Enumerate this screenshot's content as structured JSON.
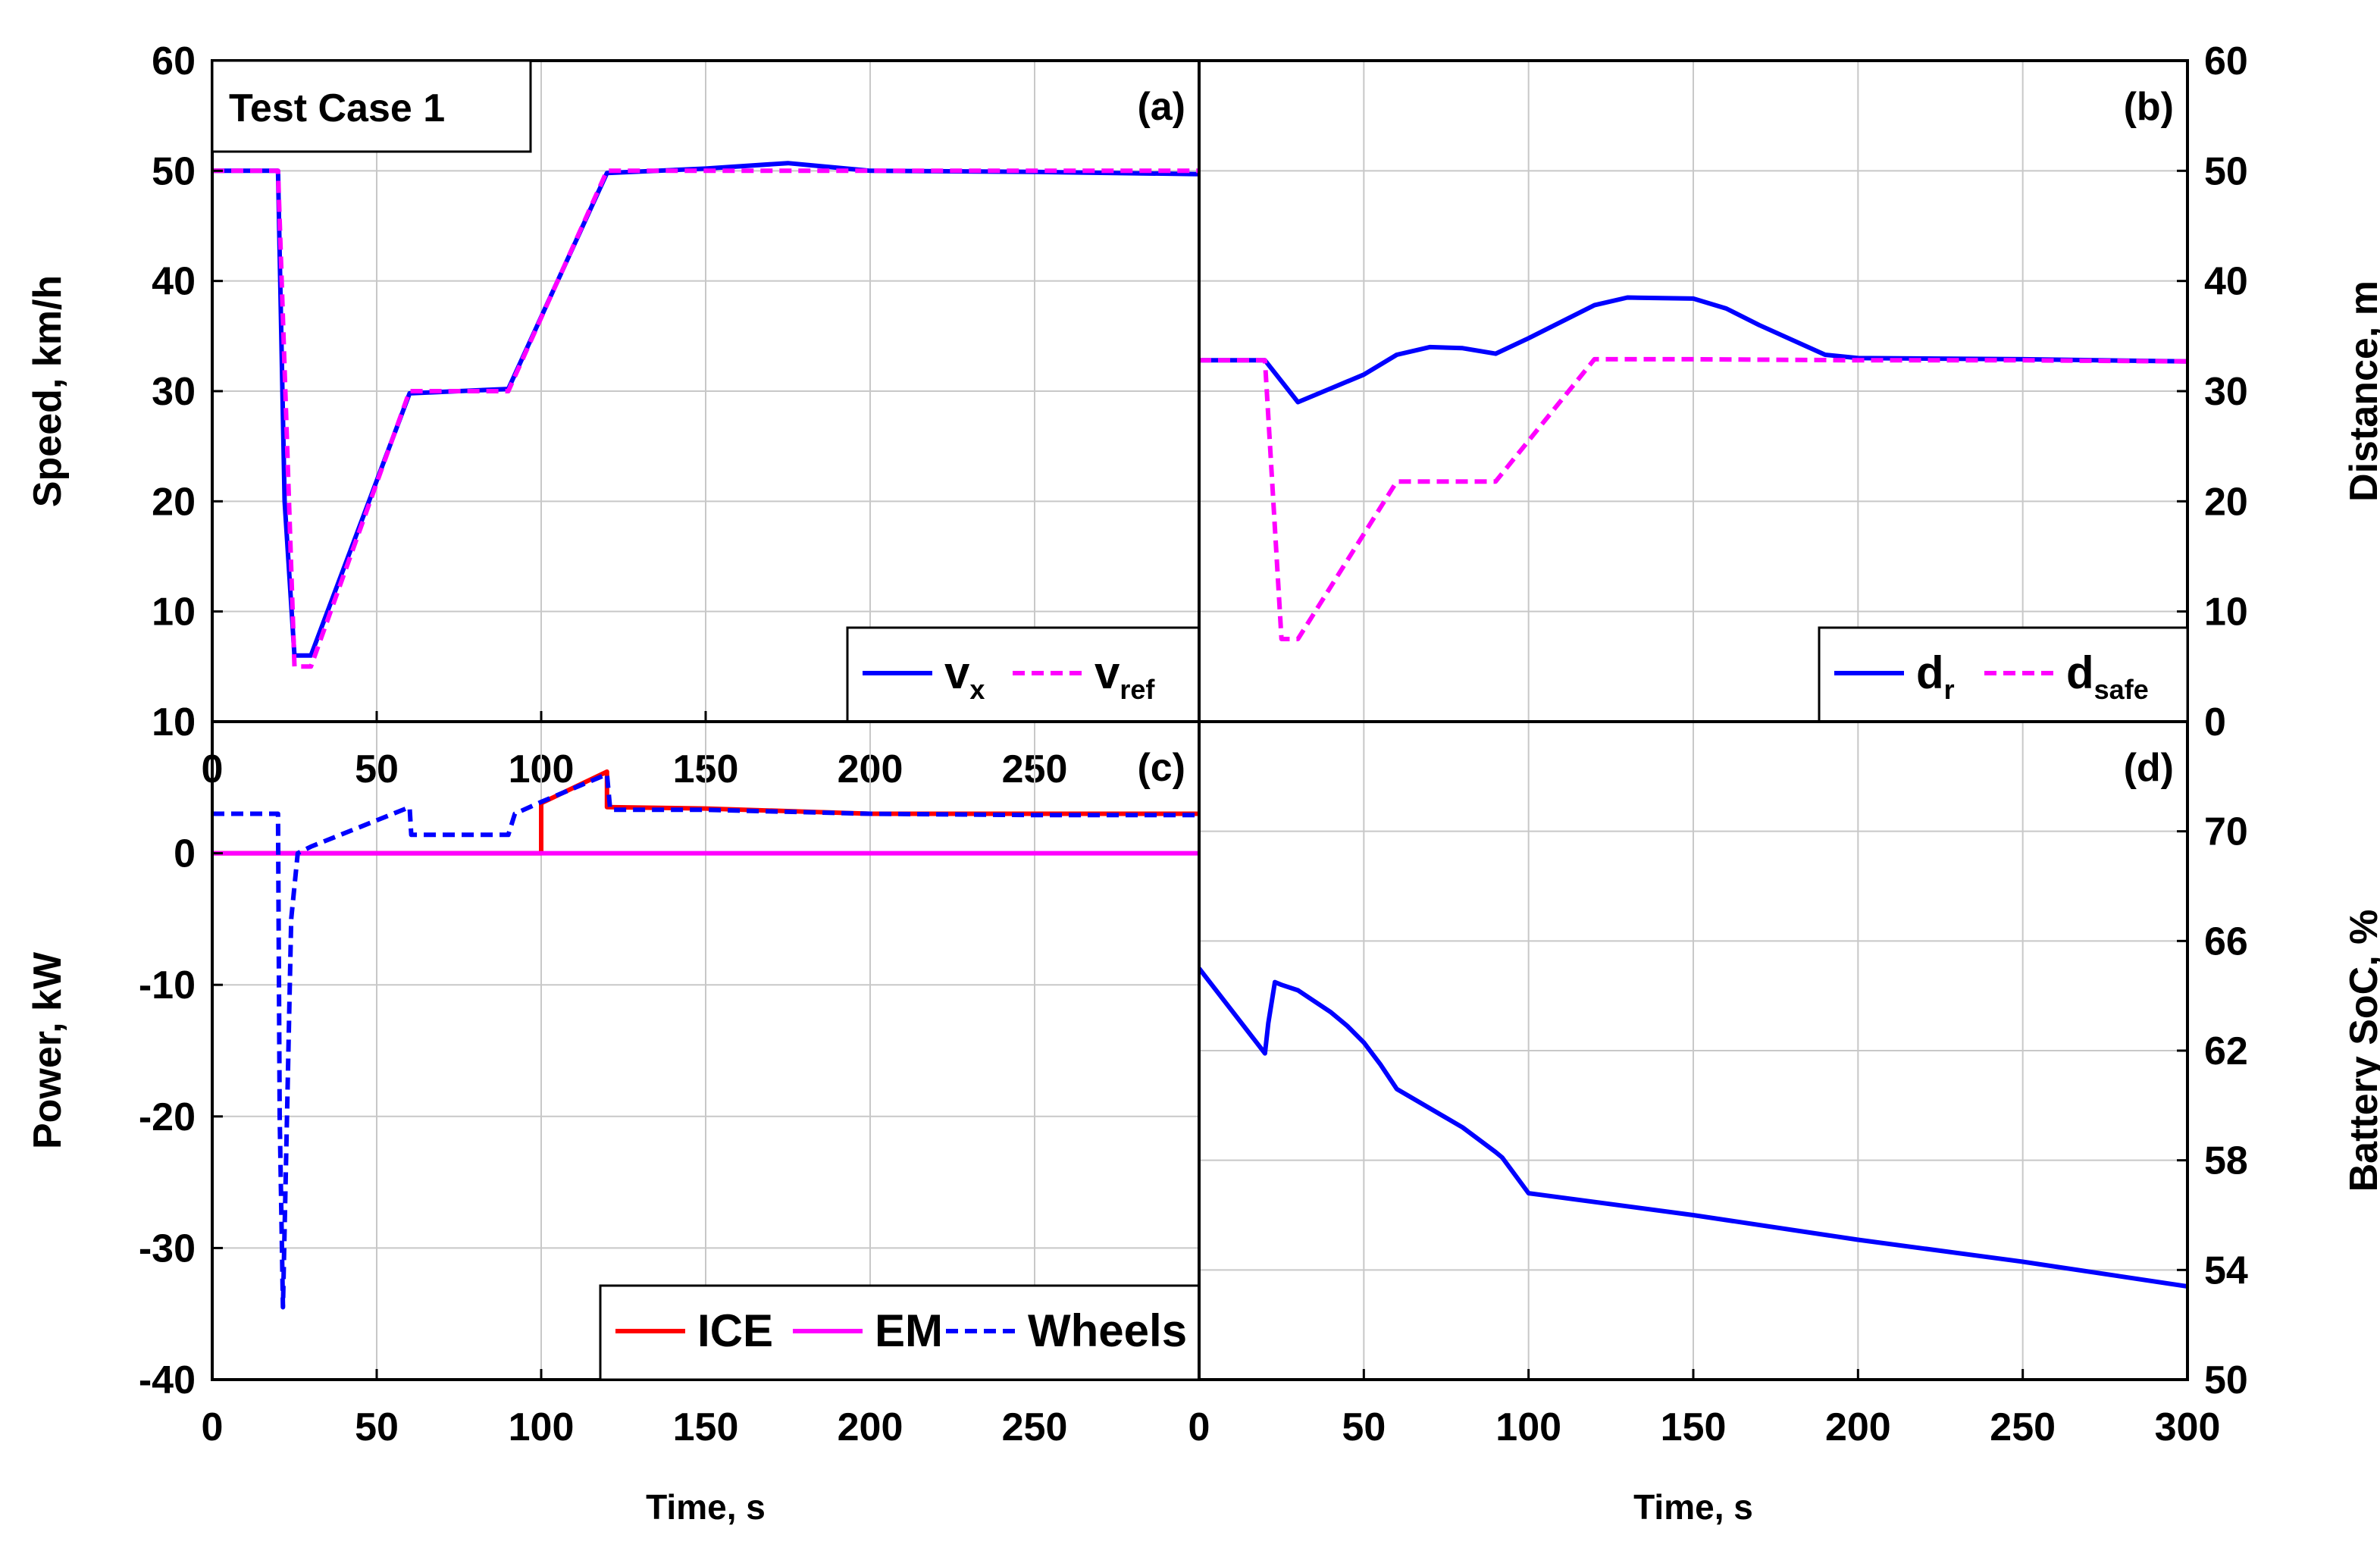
{
  "chart_data": [
    {
      "panel": "(a)",
      "type": "line",
      "annotation": "Test Case 1",
      "xlabel": "",
      "ylabel": "Speed, km/h",
      "xlim": [
        0,
        300
      ],
      "ylim": [
        0,
        60
      ],
      "yticks": [
        0,
        10,
        20,
        30,
        40,
        50,
        60
      ],
      "xtick_labels": [
        "0",
        "50",
        "100",
        "150",
        "200",
        "250"
      ],
      "grid": true,
      "legend": "bottom-right",
      "series": [
        {
          "name": "v",
          "subscript": "x",
          "color": "#0000ff",
          "dash": "solid",
          "x": [
            0,
            20,
            22,
            25,
            30,
            60,
            90,
            120,
            150,
            175,
            200,
            250,
            300
          ],
          "y": [
            50,
            50,
            20,
            6,
            6,
            29.8,
            30.2,
            49.8,
            50.2,
            50.7,
            50,
            49.9,
            49.7
          ]
        },
        {
          "name": "v",
          "subscript": "ref",
          "color": "#ff00ff",
          "dash": "dashed",
          "x": [
            0,
            20,
            25,
            30,
            60,
            90,
            120,
            150,
            200,
            250,
            300
          ],
          "y": [
            50,
            50,
            5,
            5,
            30,
            30,
            50,
            50,
            50,
            50,
            50
          ]
        }
      ]
    },
    {
      "panel": "(b)",
      "type": "line",
      "xlabel": "",
      "ylabel": "Distance, m",
      "xlim": [
        0,
        300
      ],
      "ylim": [
        0,
        60
      ],
      "yticks": [
        0,
        10,
        20,
        30,
        40,
        50,
        60
      ],
      "grid": true,
      "legend": "bottom-right",
      "series": [
        {
          "name": "d",
          "subscript": "r",
          "color": "#0000ff",
          "dash": "solid",
          "x": [
            0,
            20,
            30,
            50,
            60,
            70,
            80,
            90,
            100,
            120,
            130,
            150,
            160,
            170,
            190,
            200,
            250,
            300
          ],
          "y": [
            32.8,
            32.8,
            29,
            31.5,
            33.3,
            34,
            33.9,
            33.4,
            34.8,
            37.8,
            38.5,
            38.4,
            37.5,
            36,
            33.3,
            33,
            32.9,
            32.7
          ]
        },
        {
          "name": "d",
          "subscript": "safe",
          "color": "#ff00ff",
          "dash": "dashed",
          "x": [
            0,
            20,
            25,
            30,
            60,
            90,
            120,
            150,
            200,
            250,
            300
          ],
          "y": [
            32.8,
            32.8,
            7.5,
            7.5,
            21.8,
            21.8,
            32.9,
            32.9,
            32.8,
            32.8,
            32.7
          ]
        }
      ]
    },
    {
      "panel": "(c)",
      "type": "line",
      "xlabel": "Time, s",
      "ylabel": "Power, kW",
      "xlim": [
        0,
        300
      ],
      "ylim": [
        -40,
        10
      ],
      "yticks": [
        -40,
        -30,
        -20,
        -10,
        0,
        10
      ],
      "xtick_labels": [
        "0",
        "50",
        "100",
        "150",
        "200",
        "250"
      ],
      "grid": true,
      "legend": "bottom-right",
      "series": [
        {
          "name": "ICE",
          "color": "#ff0000",
          "dash": "solid",
          "x": [
            0,
            100,
            100,
            120,
            120,
            150,
            200,
            250,
            300
          ],
          "y": [
            0,
            0,
            3.8,
            6.2,
            3.5,
            3.4,
            3.0,
            3.0,
            3.0
          ]
        },
        {
          "name": "EM",
          "color": "#ff00ff",
          "dash": "solid",
          "x": [
            0,
            300
          ],
          "y": [
            0,
            0
          ]
        },
        {
          "name": "Wheels",
          "color": "#0000ff",
          "dash": "dashed",
          "x": [
            0,
            20,
            20.5,
            21.5,
            24,
            26,
            30,
            60,
            60.5,
            90,
            92,
            100,
            120,
            121,
            150,
            200,
            250,
            300
          ],
          "y": [
            3.0,
            3.0,
            -20,
            -34.5,
            -5,
            0,
            0.5,
            3.5,
            1.4,
            1.4,
            3.0,
            3.9,
            6.0,
            3.3,
            3.3,
            3.0,
            2.9,
            2.9
          ]
        }
      ]
    },
    {
      "panel": "(d)",
      "type": "line",
      "xlabel": "Time, s",
      "ylabel": "Battery SoC, %",
      "xlim": [
        0,
        300
      ],
      "ylim": [
        50,
        74
      ],
      "yticks": [
        50,
        54,
        58,
        62,
        66,
        70
      ],
      "xtick_labels": [
        "0",
        "50",
        "100",
        "150",
        "200",
        "250",
        "300"
      ],
      "grid": true,
      "series": [
        {
          "name": "",
          "color": "#0000ff",
          "dash": "solid",
          "x": [
            0,
            20,
            21,
            23,
            25,
            30,
            35,
            40,
            45,
            50,
            55,
            60,
            70,
            80,
            90,
            92,
            100,
            150,
            200,
            250,
            300
          ],
          "y": [
            65.0,
            61.9,
            63.0,
            64.5,
            64.4,
            64.2,
            63.8,
            63.4,
            62.9,
            62.3,
            61.5,
            60.6,
            59.9,
            59.2,
            58.3,
            58.1,
            56.8,
            56.0,
            55.1,
            54.3,
            53.4
          ]
        }
      ]
    }
  ]
}
